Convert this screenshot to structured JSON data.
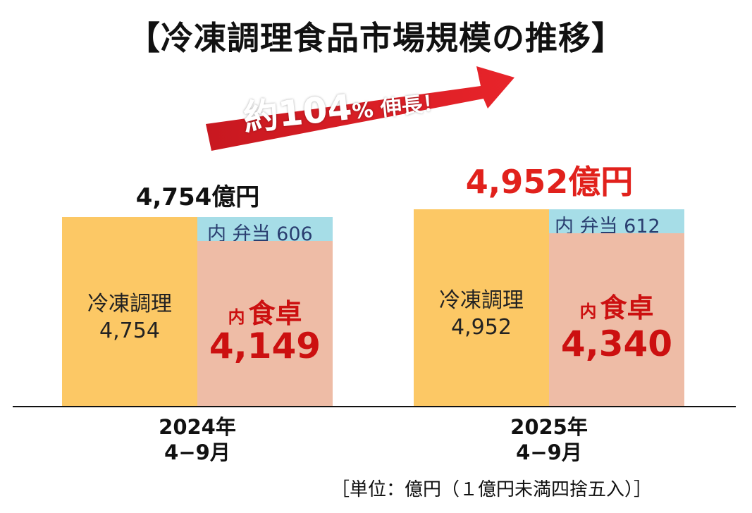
{
  "title": "【冷凍調理食品市場規模の推移】",
  "growth": {
    "prefix": "約",
    "number": "104",
    "percent_sign": "%",
    "suffix": " 伸長！"
  },
  "unit_note": "［単位：億円（１億円未満四捨五入）］",
  "colors": {
    "frozen": "#fcc865",
    "bento": "#a6dde7",
    "table": "#eebca6",
    "accent_red": "#e1211c",
    "dark_red": "#cc1010"
  },
  "chart_data": {
    "type": "bar",
    "stacked": true,
    "unit": "億円",
    "categories": [
      "2024年 4−9月",
      "2025年 4−9月"
    ],
    "series": [
      {
        "name": "冷凍調理",
        "values": [
          4754,
          4952
        ]
      },
      {
        "name": "内 食卓",
        "values": [
          4149,
          4340
        ]
      },
      {
        "name": "内 弁当",
        "values": [
          606,
          612
        ]
      }
    ],
    "growth_rate_percent": 104,
    "bars": [
      {
        "period_year": "2024年",
        "period_months": "4−9月",
        "total_label": "4,754億円",
        "frozen_name": "冷凍調理",
        "frozen_value_label": "4,754",
        "frozen_value": 4754,
        "table_prefix": "内",
        "table_name": "食卓",
        "table_value_label": "4,149",
        "table_value": 4149,
        "bento_label": "内 弁当 606",
        "bento_value": 606
      },
      {
        "period_year": "2025年",
        "period_months": "4−9月",
        "total_label": "4,952億円",
        "frozen_name": "冷凍調理",
        "frozen_value_label": "4,952",
        "frozen_value": 4952,
        "table_prefix": "内",
        "table_name": "食卓",
        "table_value_label": "4,340",
        "table_value": 4340,
        "bento_label": "内 弁当  612",
        "bento_value": 612
      }
    ]
  }
}
